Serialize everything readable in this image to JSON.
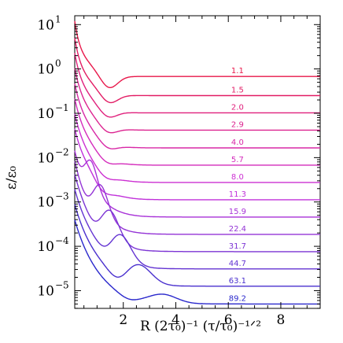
{
  "chart_data": {
    "type": "line",
    "title": "",
    "xlabel": "R (2τ₀)⁻¹ (τ/τ₀)⁻¹ᐟ²",
    "ylabel": "ε/ε₀",
    "xlim": [
      0.15,
      9.5
    ],
    "ylim_log10": [
      -5.4,
      1.2
    ],
    "y_scale": "log",
    "x_ticks": [
      "2",
      "4",
      "6",
      "8"
    ],
    "x_tick_values": [
      2,
      4,
      6,
      8
    ],
    "y_ticks": [
      {
        "base": "10",
        "exp": "1",
        "value": 1
      },
      {
        "base": "10",
        "exp": "0",
        "value": 0
      },
      {
        "base": "10",
        "exp": "−1",
        "value": -1
      },
      {
        "base": "10",
        "exp": "−2",
        "value": -2
      },
      {
        "base": "10",
        "exp": "−3",
        "value": -3
      },
      {
        "base": "10",
        "exp": "−4",
        "value": -4
      },
      {
        "base": "10",
        "exp": "−5",
        "value": -5
      }
    ],
    "grid": false,
    "legend": "inline labels near right edge of each curve",
    "series": [
      {
        "name": "1.1",
        "color": "#e8174a",
        "plateau_log10": -0.17,
        "dip_x": 1.45,
        "dip_depth": 0.3,
        "bump": 0,
        "bump_x": 0
      },
      {
        "name": "1.5",
        "color": "#e21c64",
        "plateau_log10": -0.6,
        "dip_x": 1.45,
        "dip_depth": 0.22,
        "bump": 0,
        "bump_x": 0
      },
      {
        "name": "2.0",
        "color": "#e0207c",
        "plateau_log10": -0.99,
        "dip_x": 1.4,
        "dip_depth": 0.18,
        "bump": 0,
        "bump_x": 0
      },
      {
        "name": "2.9",
        "color": "#dc2490",
        "plateau_log10": -1.38,
        "dip_x": 1.4,
        "dip_depth": 0.16,
        "bump": 0,
        "bump_x": 0
      },
      {
        "name": "4.0",
        "color": "#d828a6",
        "plateau_log10": -1.78,
        "dip_x": 1.4,
        "dip_depth": 0.14,
        "bump": 0,
        "bump_x": 0
      },
      {
        "name": "5.7",
        "color": "#d42cbc",
        "plateau_log10": -2.17,
        "dip_x": 1.35,
        "dip_depth": 0.12,
        "bump": 0,
        "bump_x": 0
      },
      {
        "name": "8.0",
        "color": "#cc30d2",
        "plateau_log10": -2.56,
        "dip_x": 1.3,
        "dip_depth": 0.12,
        "bump": 0,
        "bump_x": 0
      },
      {
        "name": "11.3",
        "color": "#c030da",
        "plateau_log10": -2.95,
        "dip_x": 1.2,
        "dip_depth": 0.14,
        "bump": 0.05,
        "bump_x": 0.75
      },
      {
        "name": "15.9",
        "color": "#a832d8",
        "plateau_log10": -3.34,
        "dip_x": 0.45,
        "dip_depth": 0.3,
        "bump": 0.75,
        "bump_x": 0.75
      },
      {
        "name": "22.4",
        "color": "#9434d6",
        "plateau_log10": -3.73,
        "dip_x": 0.75,
        "dip_depth": 0.3,
        "bump": 0.8,
        "bump_x": 1.1
      },
      {
        "name": "31.7",
        "color": "#7c34d4",
        "plateau_log10": -4.12,
        "dip_x": 1.05,
        "dip_depth": 0.25,
        "bump": 0.72,
        "bump_x": 1.45
      },
      {
        "name": "44.7",
        "color": "#6434d2",
        "plateau_log10": -4.51,
        "dip_x": 1.4,
        "dip_depth": 0.22,
        "bump": 0.65,
        "bump_x": 1.85
      },
      {
        "name": "63.1",
        "color": "#4a30ce",
        "plateau_log10": -4.9,
        "dip_x": 1.8,
        "dip_depth": 0.15,
        "bump": 0.42,
        "bump_x": 2.6
      },
      {
        "name": "89.2",
        "color": "#2a28cc",
        "plateau_log10": -5.3,
        "dip_x": 2.2,
        "dip_depth": 0.06,
        "bump": 0.2,
        "bump_x": 3.5
      }
    ]
  }
}
